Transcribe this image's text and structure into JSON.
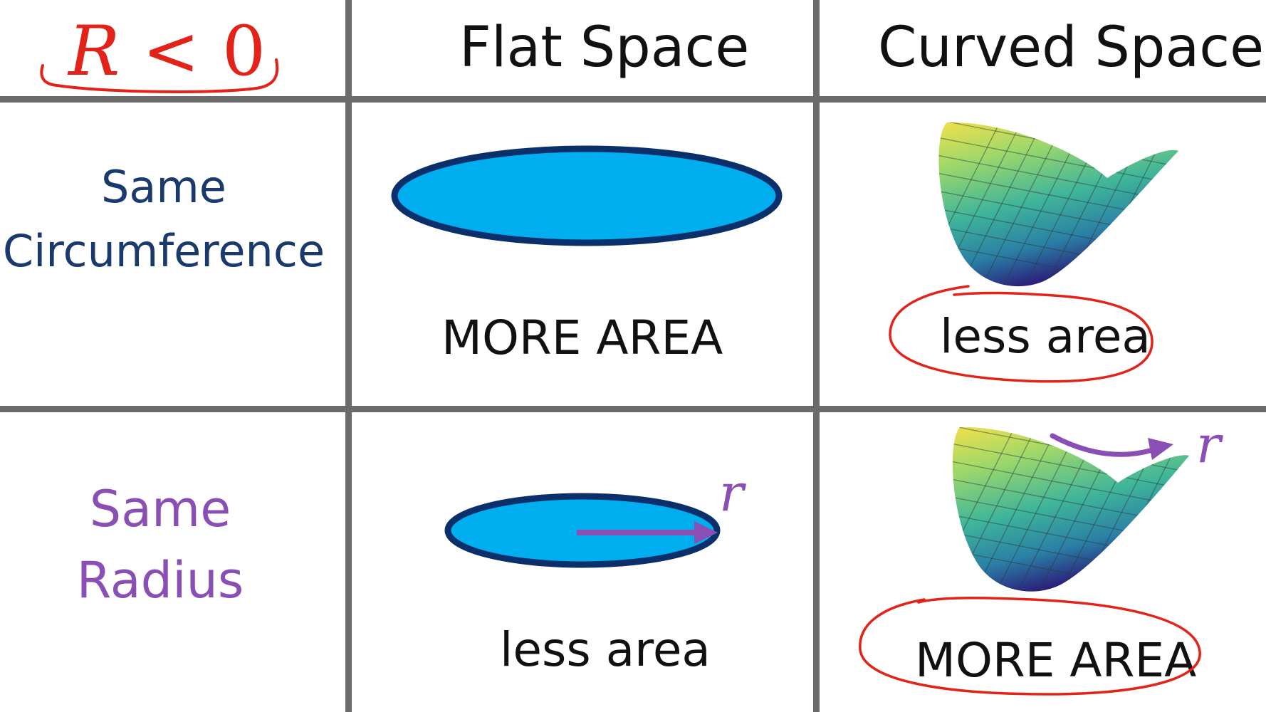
{
  "header": {
    "condition": {
      "symbol": "R",
      "operator": "<",
      "value": "0"
    },
    "flat_space": "Flat Space",
    "curved_space": "Curved Space"
  },
  "rows": [
    {
      "label_line1": "Same",
      "label_line2": "Circumference",
      "label_color": "#1a3a6e",
      "flat_result": "MORE AREA",
      "curved_result": "less area"
    },
    {
      "label_line1": "Same",
      "label_line2": "Radius",
      "label_color": "#8a4fb5",
      "flat_result": "less area",
      "curved_result": "MORE AREA",
      "radius_symbol": "r"
    }
  ],
  "colors": {
    "annotation_red": "#e32219",
    "disk_fill": "#00aeef",
    "disk_stroke": "#0b2f6b",
    "arrow_purple": "#8a4fb5",
    "grid": "#6b6b6b"
  }
}
